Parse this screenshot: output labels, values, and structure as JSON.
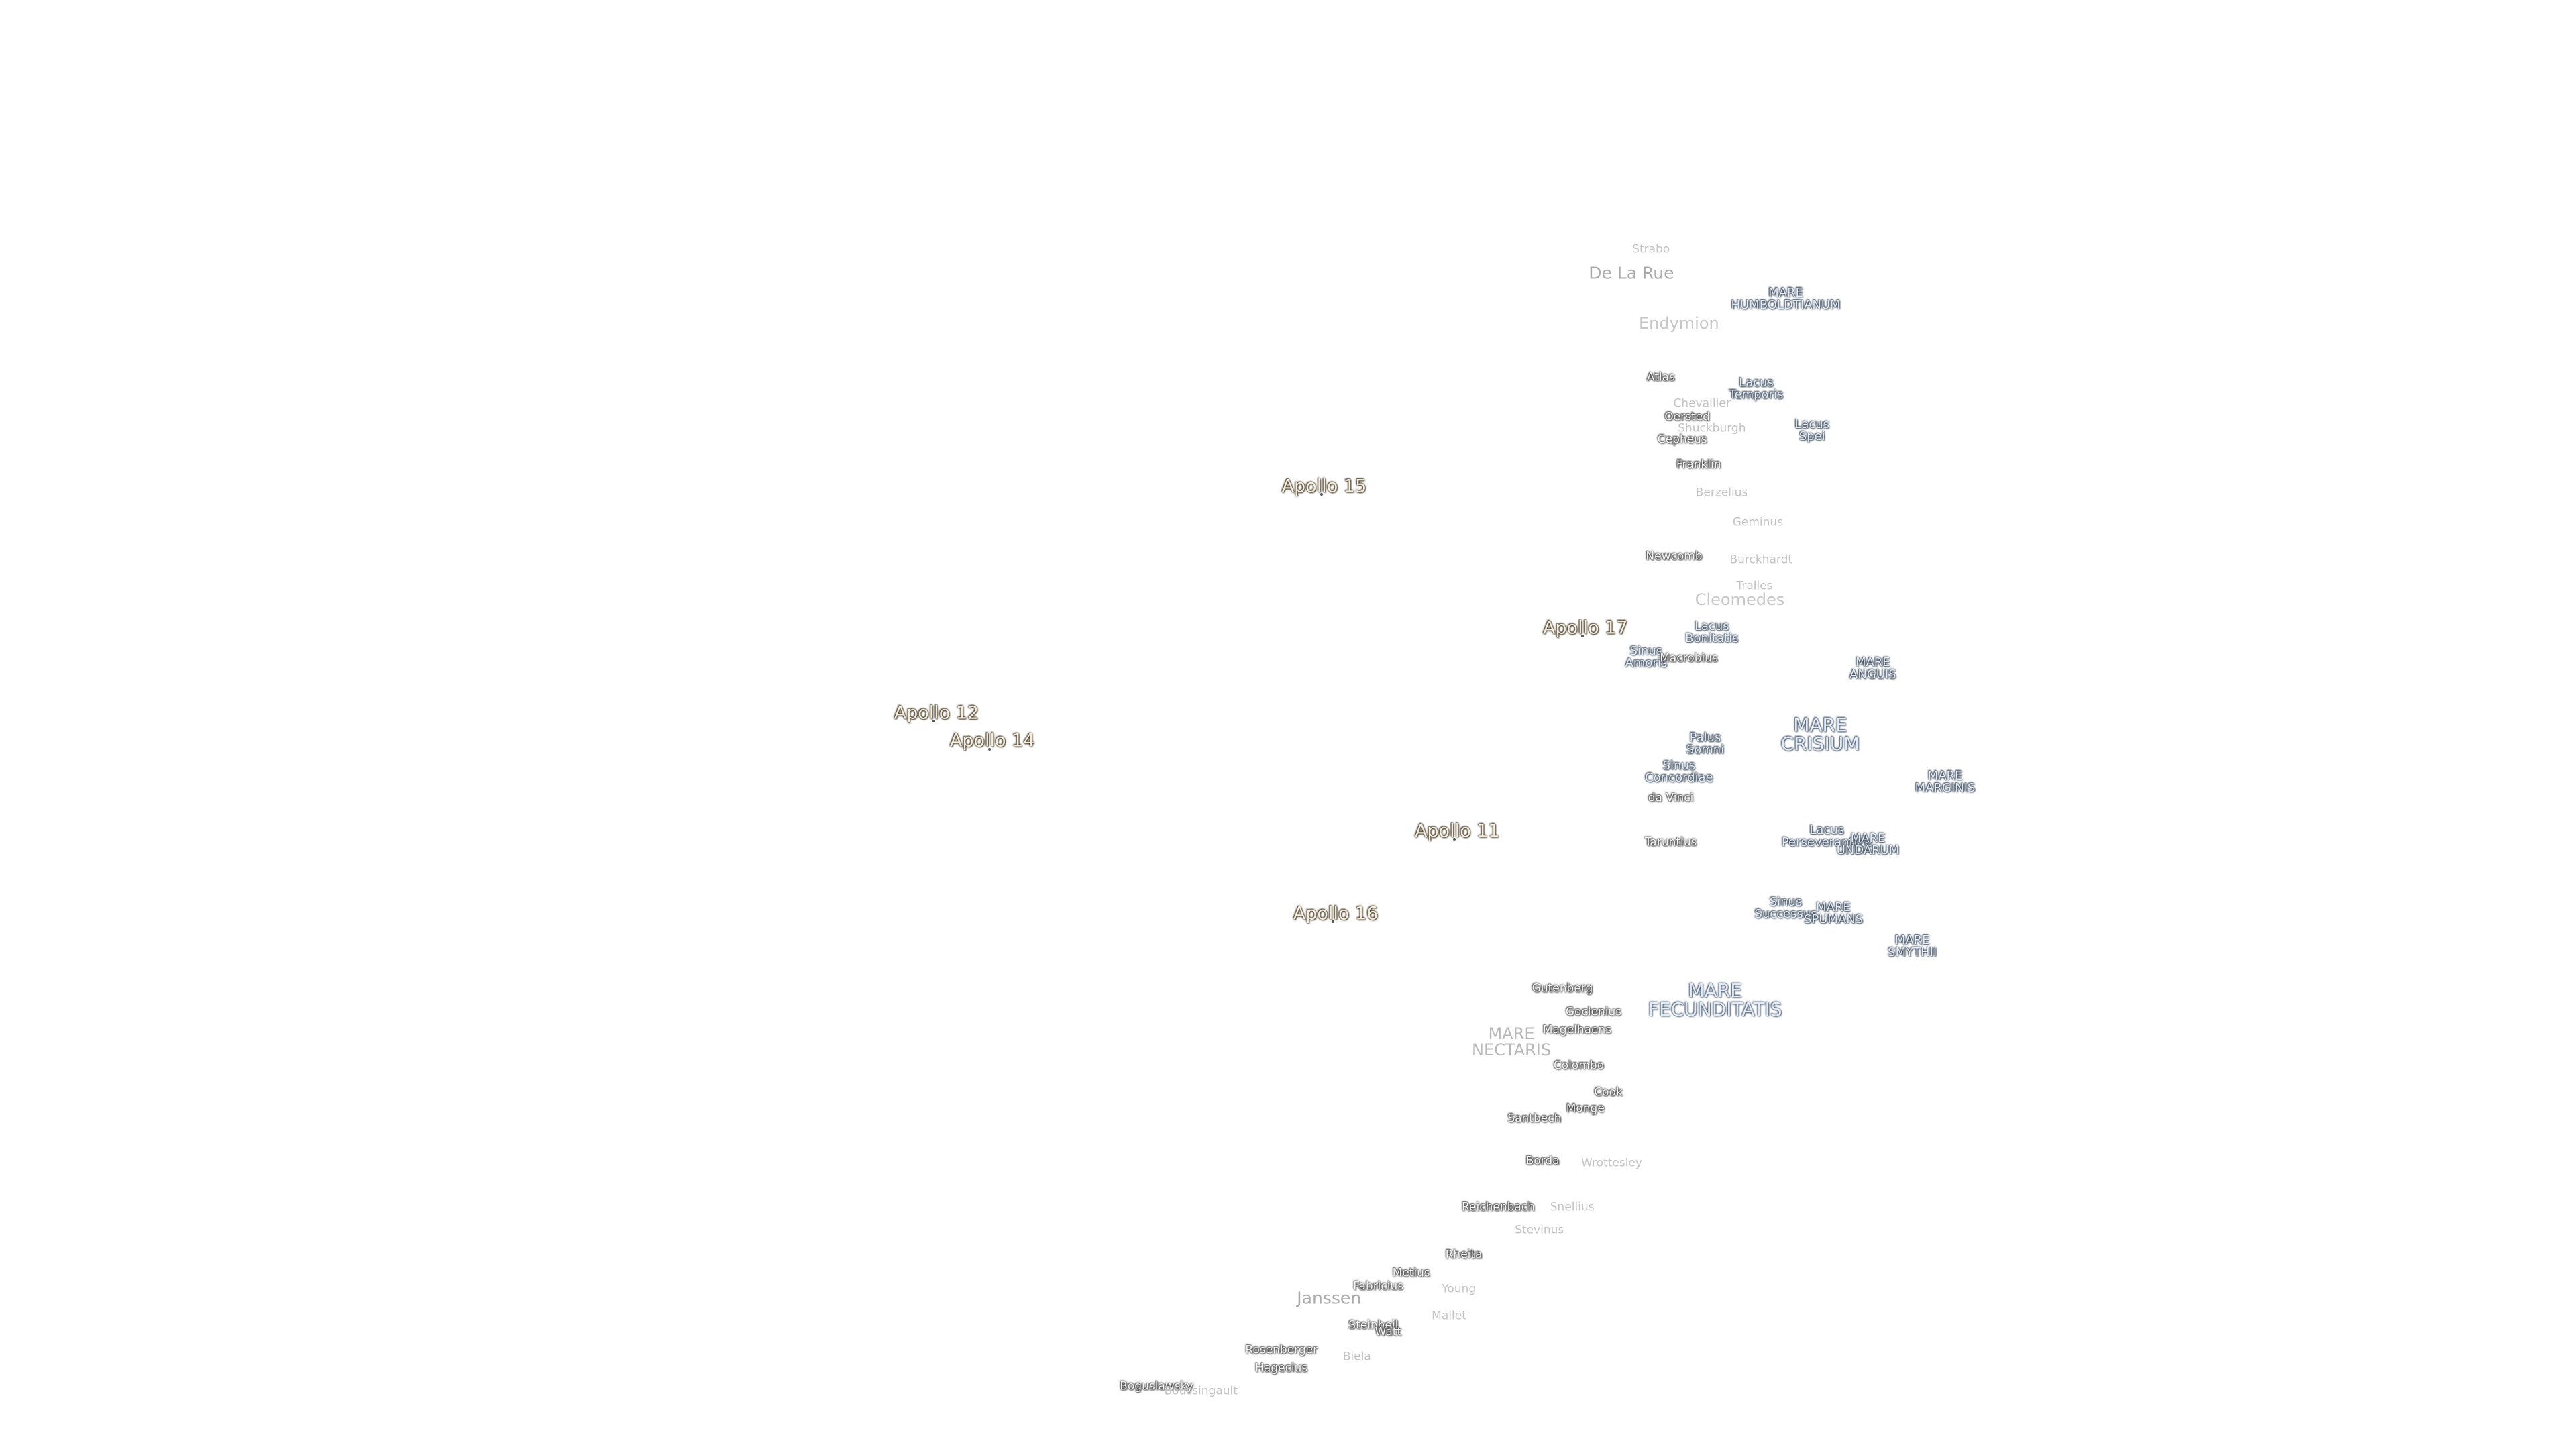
{
  "labels": [
    [
      "Strabo"
    ],
    [
      "De La Rue"
    ],
    [
      "MARE",
      "HUMBOLDTIANUM"
    ],
    [
      "Endymion"
    ],
    [
      "Atlas"
    ],
    [
      "Lacus",
      "Temporis"
    ],
    [
      "Chevallier"
    ],
    [
      "Oersted"
    ],
    [
      "Shuckburgh"
    ],
    [
      "Lacus",
      "Spei"
    ],
    [
      "Cepheus"
    ],
    [
      "Franklin"
    ],
    [
      "Berzelius"
    ],
    [
      "Apollo 15"
    ],
    [
      "Geminus"
    ],
    [
      "Newcomb"
    ],
    [
      "Burckhardt"
    ],
    [
      "Tralles"
    ],
    [
      "Cleomedes"
    ],
    [
      "Apollo 17"
    ],
    [
      "Lacus",
      "Bonitatis"
    ],
    [
      "Sinus",
      "Amoris"
    ],
    [
      "Macrobius"
    ],
    [
      "MARE",
      "ANGUIS"
    ],
    [
      "Apollo 12"
    ],
    [
      "Apollo 14"
    ],
    [
      "MARE",
      "CRISIUM"
    ],
    [
      "Palus",
      "Somni"
    ],
    [
      "Sinus",
      "Concordiae"
    ],
    [
      "MARE",
      "MARGINIS"
    ],
    [
      "da Vinci"
    ],
    [
      "Apollo 11"
    ],
    [
      "Lacus",
      "Perseverantiae"
    ],
    [
      "MARE",
      "UNDARUM"
    ],
    [
      "Taruntius"
    ],
    [
      "Sinus",
      "Successus"
    ],
    [
      "MARE",
      "SPUMANS"
    ],
    [
      "Apollo 16"
    ],
    [
      "MARE",
      "SMYTHII"
    ],
    [
      "Gutenberg"
    ],
    [
      "MARE",
      "FECUNDITATIS"
    ],
    [
      "Goclenius"
    ],
    [
      "Magelhaens"
    ],
    [
      "MARE",
      "NECTARIS"
    ],
    [
      "Colombo"
    ],
    [
      "Cook"
    ],
    [
      "Monge"
    ],
    [
      "Santbech"
    ],
    [
      "Borda"
    ],
    [
      "Wrottesley"
    ],
    [
      "Reichenbach"
    ],
    [
      "Snellius"
    ],
    [
      "Stevinus"
    ],
    [
      "Rheita"
    ],
    [
      "Metius"
    ],
    [
      "Fabricius"
    ],
    [
      "Young"
    ],
    [
      "Janssen"
    ],
    [
      "Steinheil"
    ],
    [
      "Watt"
    ],
    [
      "Mallet"
    ],
    [
      "Rosenberger"
    ],
    [
      "Hagecius"
    ],
    [
      "Biela"
    ],
    [
      "Boguslawsky"
    ],
    [
      "Boussingault"
    ]
  ]
}
